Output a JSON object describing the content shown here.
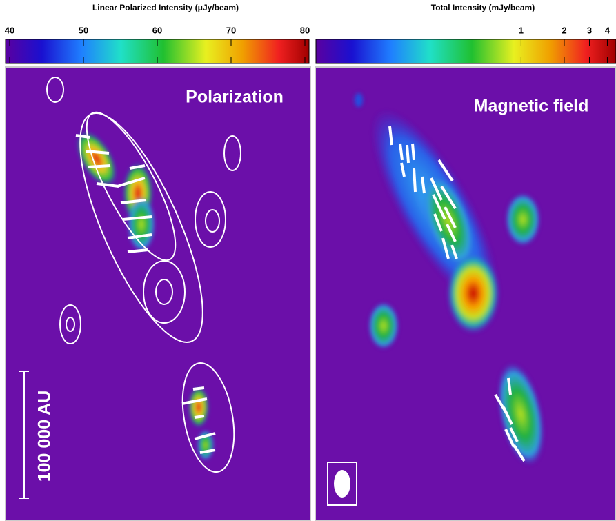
{
  "colorbars": [
    {
      "title": "Linear Polarized Intensity (μJy/beam)",
      "lim": [
        40,
        80
      ],
      "ticks": [
        40,
        50,
        60,
        70,
        80
      ],
      "scale": "linear"
    },
    {
      "title": "Total Intensity (mJy/beam)",
      "lim": [
        0.037,
        4.3
      ],
      "ticks": [
        1,
        2,
        3,
        4
      ],
      "scale": "log"
    }
  ],
  "panels": [
    {
      "label": "Polarization"
    },
    {
      "label": "Magnetic field"
    }
  ],
  "scale_bar": {
    "label": "100 000 AU"
  }
}
